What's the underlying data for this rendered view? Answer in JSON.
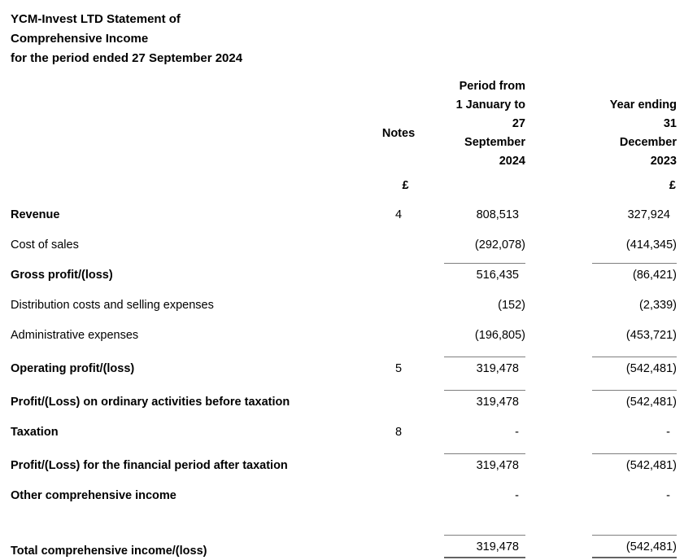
{
  "title": {
    "line1": "YCM-Invest LTD Statement of",
    "line2": "Comprehensive Income",
    "line3": "for the period ended 27 September 2024"
  },
  "columns": {
    "notes": "Notes",
    "current_period": "Period from\n1 January to\n27\nSeptember\n2024",
    "prior_period": "Year ending\n31\nDecember\n2023",
    "current_currency": "£",
    "prior_currency": "£"
  },
  "rows": [
    {
      "label": "Revenue",
      "note": "4",
      "current": "808,513",
      "prior": "327,924"
    },
    {
      "label": "Cost of sales",
      "note": "",
      "current": "(292,078)",
      "prior": "(414,345)"
    },
    {
      "label": "Gross profit/(loss)",
      "note": "",
      "current": "516,435",
      "prior": "(86,421)"
    },
    {
      "label": "Distribution costs and selling expenses",
      "note": "",
      "current": "(152)",
      "prior": "(2,339)"
    },
    {
      "label": "Administrative expenses",
      "note": "",
      "current": "(196,805)",
      "prior": "(453,721)"
    },
    {
      "label": "Operating profit/(loss)",
      "note": "5",
      "current": "319,478",
      "prior": "(542,481)"
    },
    {
      "label": "Profit/(Loss) on ordinary activities before taxation",
      "note": "",
      "current": "319,478",
      "prior": "(542,481)"
    },
    {
      "label": "Taxation",
      "note": "8",
      "current": "-",
      "prior": "-"
    },
    {
      "label": "Profit/(Loss) for the financial period after taxation",
      "note": "",
      "current": "319,478",
      "prior": "(542,481)"
    },
    {
      "label": "Other comprehensive income",
      "note": "",
      "current": "-",
      "prior": "-"
    },
    {
      "label": "Total comprehensive income/(loss)",
      "note": "",
      "current": "319,478",
      "prior": "(542,481)"
    }
  ]
}
